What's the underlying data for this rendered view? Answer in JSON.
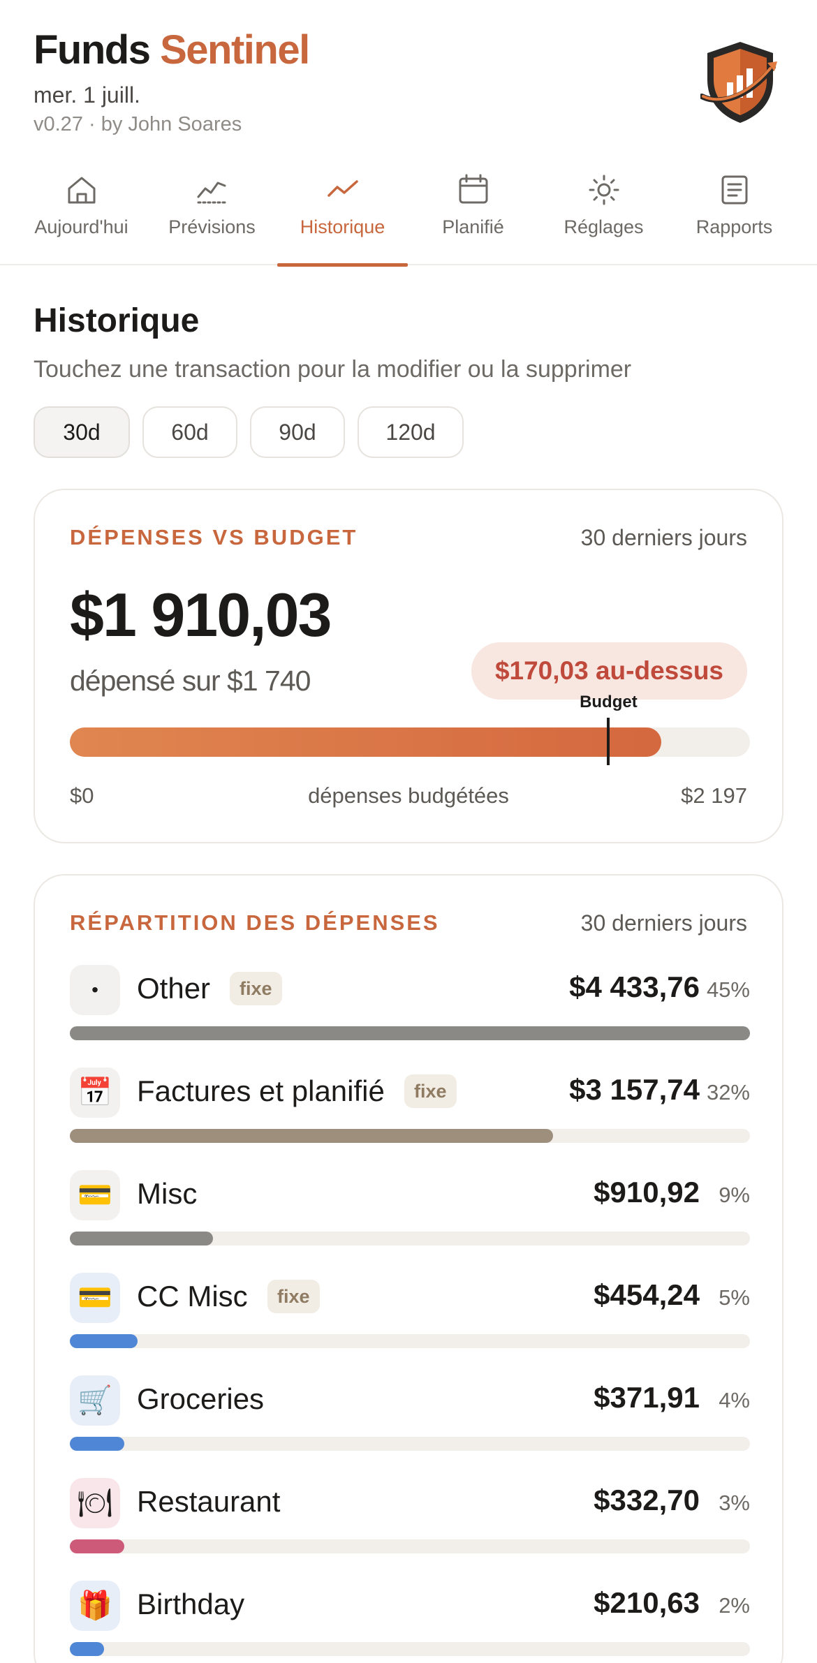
{
  "header": {
    "brand_part1": "Funds",
    "brand_part2": "Sentinel",
    "date": "mer. 1 juill.",
    "version": "v0.27 · by John Soares"
  },
  "tabs": [
    {
      "label": "Aujourd'hui",
      "icon": "home-icon",
      "active": false
    },
    {
      "label": "Prévisions",
      "icon": "forecast-chart-icon",
      "active": false
    },
    {
      "label": "Historique",
      "icon": "trend-line-icon",
      "active": true
    },
    {
      "label": "Planifié",
      "icon": "calendar-icon",
      "active": false
    },
    {
      "label": "Réglages",
      "icon": "sun-gear-icon",
      "active": false
    },
    {
      "label": "Rapports",
      "icon": "report-document-icon",
      "active": false
    }
  ],
  "page": {
    "title": "Historique",
    "subtitle": "Touchez une transaction pour la modifier ou la supprimer"
  },
  "ranges": [
    {
      "label": "30d",
      "active": true
    },
    {
      "label": "60d",
      "active": false
    },
    {
      "label": "90d",
      "active": false
    },
    {
      "label": "120d",
      "active": false
    }
  ],
  "budget_card": {
    "label": "DÉPENSES VS BUDGET",
    "period": "30 derniers jours",
    "spent": "$1 910,03",
    "spent_of": "dépensé sur $1 740",
    "over_badge": "$170,03 au-dessus",
    "budget_tag": "Budget",
    "axis_min": "$0",
    "axis_mid": "dépenses budgétées",
    "axis_max": "$2 197",
    "spent_value": 1910.03,
    "budget_value": 1740,
    "max_value": 2197,
    "fill_color_start": "#e08650",
    "fill_color_end": "#d4683f"
  },
  "breakdown": {
    "label": "RÉPARTITION DES DÉPENSES",
    "period": "30 derniers jours",
    "categories": [
      {
        "name": "Other",
        "badge": "fixe",
        "amount": "$4 433,76",
        "pct": "45%",
        "share": 1.0,
        "color": "#8a8985",
        "icon": "dot-icon",
        "glyph": "•",
        "icon_bg": "#f2f1ef"
      },
      {
        "name": "Factures et planifié",
        "badge": "fixe",
        "amount": "$3 157,74",
        "pct": "32%",
        "share": 0.71,
        "color": "#9e8f7c",
        "icon": "calendar-icon",
        "glyph": "📅",
        "icon_bg": "#f2f1ef"
      },
      {
        "name": "Misc",
        "badge": "",
        "amount": "$910,92",
        "pct": "9%",
        "share": 0.21,
        "color": "#8a8985",
        "icon": "credit-card-icon",
        "glyph": "💳",
        "icon_bg": "#f2f1ef"
      },
      {
        "name": "CC Misc",
        "badge": "fixe",
        "amount": "$454,24",
        "pct": "5%",
        "share": 0.1,
        "color": "#4f87d6",
        "icon": "credit-card-icon",
        "glyph": "💳",
        "icon_bg": "#e8eef8"
      },
      {
        "name": "Groceries",
        "badge": "",
        "amount": "$371,91",
        "pct": "4%",
        "share": 0.08,
        "color": "#4f87d6",
        "icon": "shopping-cart-icon",
        "glyph": "🛒",
        "icon_bg": "#e8eef8"
      },
      {
        "name": "Restaurant",
        "badge": "",
        "amount": "$332,70",
        "pct": "3%",
        "share": 0.08,
        "color": "#cd5a78",
        "icon": "plate-cutlery-icon",
        "glyph": "🍽",
        "icon_bg": "#f8e6ea"
      },
      {
        "name": "Birthday",
        "badge": "",
        "amount": "$210,63",
        "pct": "2%",
        "share": 0.05,
        "color": "#4f87d6",
        "icon": "gift-icon",
        "glyph": "🎁",
        "icon_bg": "#e8eef8"
      }
    ]
  }
}
